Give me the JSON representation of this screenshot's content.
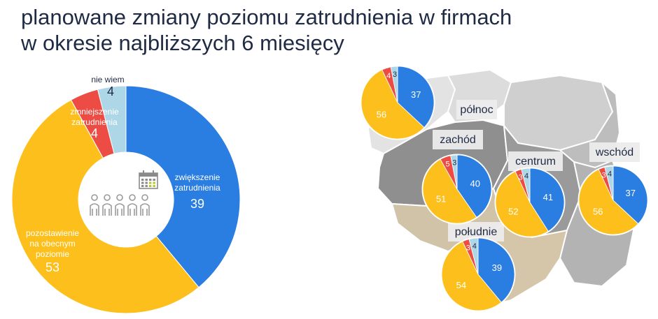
{
  "title_line1": "planowane zmiany poziomu zatrudnienia w firmach",
  "title_line2": "w okresie najbliższych 6 miesięcy",
  "colors": {
    "increase": "#2a7de1",
    "keep": "#fdbf1b",
    "decrease": "#ec4c44",
    "dont_know": "#add7e6"
  },
  "chart_data": [
    {
      "type": "pie",
      "title": "",
      "categories": [
        "zwiększenie zatrudnienia",
        "pozostawienie na obecnym poziomie",
        "zmniejszenie zatrudnienia",
        "nie wiem"
      ],
      "values": [
        39,
        53,
        4,
        4
      ],
      "labels": {
        "increase": [
          "zwiększenie",
          "zatrudnienia"
        ],
        "keep": [
          "pozostawienie",
          "na obecnym",
          "poziomie"
        ],
        "decrease": [
          "zmniejszenie",
          "zatrudnienia"
        ],
        "dont_know": [
          "nie wiem"
        ]
      }
    },
    {
      "type": "pie",
      "title": "",
      "regions": [
        {
          "name": "północ",
          "increase": 37,
          "keep": 56,
          "decrease": 4,
          "dont_know": 3
        },
        {
          "name": "zachód",
          "increase": 40,
          "keep": 51,
          "decrease": 5,
          "dont_know": 3
        },
        {
          "name": "centrum",
          "increase": 41,
          "keep": 52,
          "decrease": 3,
          "dont_know": 4
        },
        {
          "name": "wschód",
          "increase": 37,
          "keep": 56,
          "decrease": 3,
          "dont_know": 4
        },
        {
          "name": "południe",
          "increase": 39,
          "keep": 54,
          "decrease": 3,
          "dont_know": 4
        }
      ]
    }
  ]
}
